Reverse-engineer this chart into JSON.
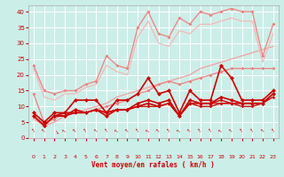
{
  "x": [
    0,
    1,
    2,
    3,
    4,
    5,
    6,
    7,
    8,
    9,
    10,
    11,
    12,
    13,
    14,
    15,
    16,
    17,
    18,
    19,
    20,
    21,
    22,
    23
  ],
  "background_color": "#cceee8",
  "grid_color": "#ffffff",
  "xlabel": "Vent moyen/en rafales ( km/h )",
  "xlabel_color": "#cc0000",
  "tick_color": "#cc0000",
  "series": [
    {
      "color": "#f08080",
      "lw": 0.9,
      "marker": "D",
      "ms": 2.0,
      "values": [
        23,
        15,
        14,
        15,
        15,
        17,
        18,
        26,
        23,
        22,
        35,
        40,
        33,
        32,
        38,
        36,
        40,
        39,
        40,
        41,
        40,
        40,
        26,
        36
      ]
    },
    {
      "color": "#f08080",
      "lw": 0.9,
      "marker": "D",
      "ms": 2.0,
      "values": [
        14,
        5,
        6,
        8,
        8,
        8,
        9,
        10,
        11,
        12,
        14,
        15,
        17,
        18,
        17,
        18,
        19,
        20,
        21,
        22,
        22,
        22,
        22,
        22
      ]
    },
    {
      "color": "#f4a0a0",
      "lw": 0.9,
      "marker": null,
      "ms": 0,
      "values": [
        6,
        4,
        5,
        7,
        8,
        9,
        10,
        11,
        13,
        14,
        15,
        16,
        17,
        18,
        19,
        20,
        22,
        23,
        24,
        25,
        26,
        27,
        28,
        29
      ]
    },
    {
      "color": "#f4b8b8",
      "lw": 0.9,
      "marker": null,
      "ms": 0,
      "values": [
        22,
        13,
        12,
        14,
        14,
        16,
        17,
        23,
        21,
        20,
        32,
        37,
        30,
        29,
        34,
        33,
        36,
        36,
        37,
        38,
        37,
        37,
        24,
        33
      ]
    },
    {
      "color": "#cc0000",
      "lw": 1.2,
      "marker": "D",
      "ms": 2.5,
      "values": [
        8,
        5,
        8,
        8,
        12,
        12,
        12,
        8,
        12,
        12,
        14,
        19,
        14,
        15,
        8,
        15,
        12,
        12,
        23,
        19,
        12,
        12,
        12,
        15
      ]
    },
    {
      "color": "#cc0000",
      "lw": 1.2,
      "marker": "D",
      "ms": 2.5,
      "values": [
        7,
        4,
        7,
        7,
        9,
        8,
        9,
        7,
        9,
        9,
        11,
        12,
        11,
        12,
        7,
        12,
        11,
        11,
        13,
        12,
        11,
        11,
        11,
        14
      ]
    },
    {
      "color": "#cc0000",
      "lw": 1.0,
      "marker": "D",
      "ms": 2.0,
      "values": [
        7,
        4,
        7,
        7,
        8,
        8,
        9,
        8,
        9,
        9,
        10,
        11,
        10,
        11,
        7,
        11,
        11,
        11,
        12,
        11,
        11,
        11,
        11,
        14
      ]
    },
    {
      "color": "#cc0000",
      "lw": 0.9,
      "marker": "D",
      "ms": 1.8,
      "values": [
        7,
        4,
        7,
        8,
        8,
        8,
        9,
        8,
        9,
        9,
        10,
        11,
        10,
        11,
        7,
        11,
        11,
        11,
        11,
        11,
        11,
        11,
        11,
        14
      ]
    },
    {
      "color": "#cc0000",
      "lw": 0.9,
      "marker": "D",
      "ms": 1.8,
      "values": [
        7,
        4,
        7,
        8,
        8,
        8,
        9,
        8,
        9,
        9,
        10,
        10,
        10,
        11,
        7,
        11,
        10,
        10,
        11,
        11,
        10,
        10,
        11,
        13
      ]
    }
  ],
  "ylim": [
    0,
    42
  ],
  "xlim": [
    -0.5,
    23.5
  ],
  "yticks": [
    0,
    5,
    10,
    15,
    20,
    25,
    30,
    35,
    40
  ],
  "xticks": [
    0,
    1,
    2,
    3,
    4,
    5,
    6,
    7,
    8,
    9,
    10,
    11,
    12,
    13,
    14,
    15,
    16,
    17,
    18,
    19,
    20,
    21,
    22,
    23
  ],
  "arrow_rotations": [
    30,
    45,
    -150,
    60,
    45,
    30,
    45,
    30,
    60,
    45,
    30,
    60,
    45,
    30,
    60,
    45,
    30,
    30,
    60,
    45,
    30,
    30,
    45,
    30
  ]
}
